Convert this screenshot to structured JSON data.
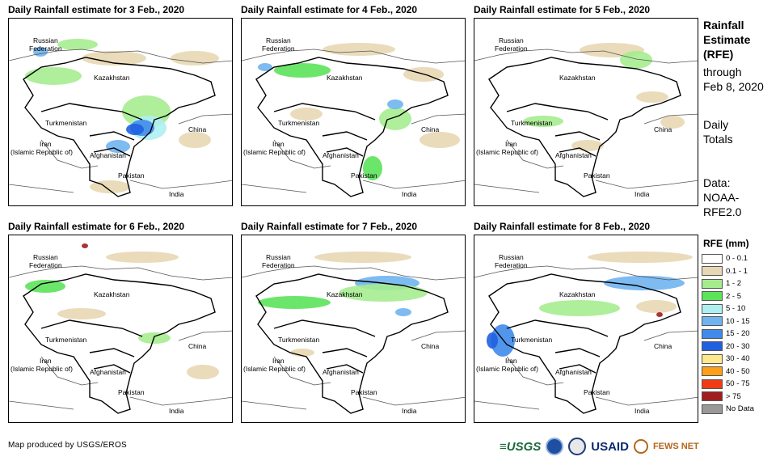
{
  "panels": [
    {
      "title": "Daily Rainfall estimate for 3 Feb., 2020",
      "intensity": "heavy"
    },
    {
      "title": "Daily Rainfall estimate for 4 Feb., 2020",
      "intensity": "moderate"
    },
    {
      "title": "Daily Rainfall estimate for 5 Feb., 2020",
      "intensity": "light"
    },
    {
      "title": "Daily Rainfall estimate for 6 Feb., 2020",
      "intensity": "light"
    },
    {
      "title": "Daily Rainfall estimate for 7 Feb., 2020",
      "intensity": "moderate"
    },
    {
      "title": "Daily Rainfall estimate for 8 Feb., 2020",
      "intensity": "moderate"
    }
  ],
  "map_labels": {
    "russia_1": "Russian",
    "russia_2": "Federation",
    "kazakhstan": "Kazakhstan",
    "turkmenistan": "Turkmenistan",
    "iran_1": "Iran",
    "iran_2": "(Islamic Republic of)",
    "afghanistan": "Afghanistan",
    "pakistan": "Pakistan",
    "china": "China",
    "india": "India"
  },
  "side": {
    "title_1": "Rainfall",
    "title_2": "Estimate",
    "title_3": "(RFE)",
    "through": "through",
    "date": "Feb 8, 2020",
    "daily": "Daily",
    "totals": "Totals",
    "data_1": "Data:",
    "data_2": "NOAA-",
    "data_3": "RFE2.0"
  },
  "legend": {
    "title": "RFE (mm)",
    "items": [
      {
        "label": "0 - 0.1",
        "color": "#ffffff"
      },
      {
        "label": "0.1 - 1",
        "color": "#e8d7b4"
      },
      {
        "label": "1 - 2",
        "color": "#a6ec8f"
      },
      {
        "label": "2 - 5",
        "color": "#5ce35a"
      },
      {
        "label": "5 - 10",
        "color": "#aef0f2"
      },
      {
        "label": "10 - 15",
        "color": "#6fb4f0"
      },
      {
        "label": "15 - 20",
        "color": "#3f8aeb"
      },
      {
        "label": "20 - 30",
        "color": "#2060e0"
      },
      {
        "label": "30 - 40",
        "color": "#ffe98a"
      },
      {
        "label": "40 - 50",
        "color": "#ff9f1a"
      },
      {
        "label": "50 - 75",
        "color": "#f03c14"
      },
      {
        "label": "> 75",
        "color": "#a01e1e"
      },
      {
        "label": "No Data",
        "color": "#999999"
      }
    ]
  },
  "credit": "Map produced by USGS/EROS",
  "logos": {
    "usgs": "≡USGS",
    "usaid": "USAID",
    "fews": "FEWS NET"
  }
}
